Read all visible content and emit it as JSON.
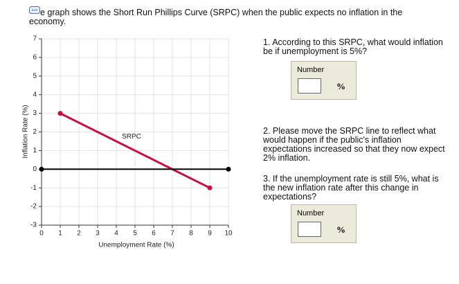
{
  "intro": "e graph shows the Short Run Phillips Curve (SRPC) when the public expects no inflation in the economy.",
  "chart_data": {
    "type": "line",
    "x_label": "Unemployment Rate (%)",
    "y_label": "Inflation Rate (%)",
    "xlim": [
      0,
      10
    ],
    "ylim": [
      -3,
      7
    ],
    "xticks": [
      0,
      1,
      2,
      3,
      4,
      5,
      6,
      7,
      8,
      9,
      10
    ],
    "yticks": [
      -3,
      -2,
      -1,
      0,
      1,
      2,
      3,
      4,
      5,
      6,
      7
    ],
    "grid": true,
    "series": [
      {
        "name": "SRPC",
        "color": "#c8103e",
        "x": [
          1,
          9
        ],
        "values": [
          3,
          -1
        ]
      },
      {
        "color": "#000000",
        "x": [
          0,
          10
        ],
        "values": [
          0,
          0
        ]
      }
    ]
  },
  "questions": [
    {
      "text": "1. According to this SRPC, what would inflation be if unemployment is 5%?",
      "input_label": "Number",
      "unit": "%"
    },
    {
      "text": "2. Please move the SRPC line to reflect what would happen if the public's inflation expectations increased so that they now expect 2% inflation."
    },
    {
      "text": "3. If the unemployment rate is still 5%, what is the new inflation rate after this change in expectations?",
      "input_label": "Number",
      "unit": "%"
    }
  ]
}
